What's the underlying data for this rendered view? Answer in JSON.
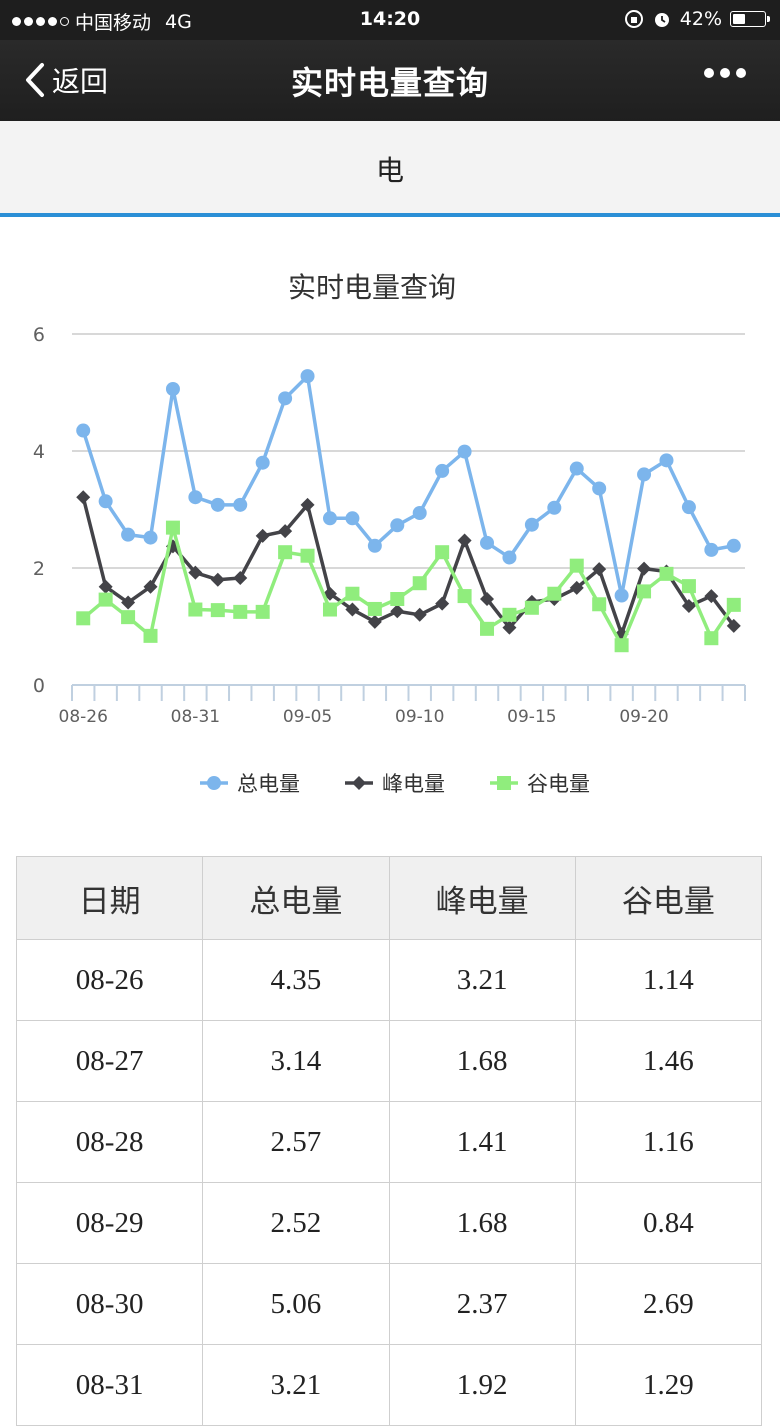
{
  "status_bar": {
    "carrier": "中国移动",
    "network": "4G",
    "time": "14:20",
    "battery_percent": "42%",
    "battery_level": 0.42
  },
  "nav": {
    "back_label": "返回",
    "title": "实时电量查询"
  },
  "tab": {
    "label": "电"
  },
  "chart_data": {
    "type": "line",
    "title": "实时电量查询",
    "categories": [
      "08-26",
      "08-27",
      "08-28",
      "08-29",
      "08-30",
      "08-31",
      "09-01",
      "09-02",
      "09-03",
      "09-04",
      "09-05",
      "09-06",
      "09-07",
      "09-08",
      "09-09",
      "09-10",
      "09-11",
      "09-12",
      "09-13",
      "09-14",
      "09-15",
      "09-16",
      "09-17",
      "09-18",
      "09-19",
      "09-20",
      "09-21",
      "09-22",
      "09-23",
      "09-24"
    ],
    "x_tick_labels": [
      "08-26",
      "08-31",
      "09-05",
      "09-10",
      "09-15",
      "09-20"
    ],
    "ylim": [
      0,
      6
    ],
    "y_ticks": [
      "0",
      "2",
      "4",
      "6"
    ],
    "grid": true,
    "legend_position": "bottom",
    "series": [
      {
        "name": "总电量",
        "color": "#7cb5ec",
        "marker": "circle",
        "values": [
          4.35,
          3.14,
          2.57,
          2.52,
          5.06,
          3.21,
          3.08,
          3.08,
          3.8,
          4.9,
          5.28,
          2.85,
          2.85,
          2.38,
          2.73,
          2.94,
          3.66,
          3.99,
          2.43,
          2.18,
          2.74,
          3.03,
          3.7,
          3.36,
          1.53,
          3.6,
          3.84,
          3.04,
          2.31,
          2.38
        ]
      },
      {
        "name": "峰电量",
        "color": "#434348",
        "marker": "diamond",
        "values": [
          3.21,
          1.68,
          1.41,
          1.68,
          2.37,
          1.92,
          1.8,
          1.83,
          2.55,
          2.63,
          3.08,
          1.56,
          1.29,
          1.08,
          1.26,
          1.2,
          1.39,
          2.47,
          1.47,
          0.98,
          1.42,
          1.47,
          1.66,
          1.98,
          0.87,
          1.99,
          1.94,
          1.35,
          1.52,
          1.01
        ]
      },
      {
        "name": "谷电量",
        "color": "#90ed7d",
        "marker": "square",
        "values": [
          1.14,
          1.46,
          1.16,
          0.84,
          2.69,
          1.29,
          1.28,
          1.25,
          1.25,
          2.27,
          2.21,
          1.29,
          1.56,
          1.3,
          1.47,
          1.74,
          2.27,
          1.52,
          0.96,
          1.2,
          1.32,
          1.56,
          2.04,
          1.38,
          0.68,
          1.6,
          1.9,
          1.69,
          0.8,
          1.37
        ]
      }
    ]
  },
  "table": {
    "headers": [
      "日期",
      "总电量",
      "峰电量",
      "谷电量"
    ],
    "rows": [
      [
        "08-26",
        "4.35",
        "3.21",
        "1.14"
      ],
      [
        "08-27",
        "3.14",
        "1.68",
        "1.46"
      ],
      [
        "08-28",
        "2.57",
        "1.41",
        "1.16"
      ],
      [
        "08-29",
        "2.52",
        "1.68",
        "0.84"
      ],
      [
        "08-30",
        "5.06",
        "2.37",
        "2.69"
      ],
      [
        "08-31",
        "3.21",
        "1.92",
        "1.29"
      ]
    ]
  }
}
